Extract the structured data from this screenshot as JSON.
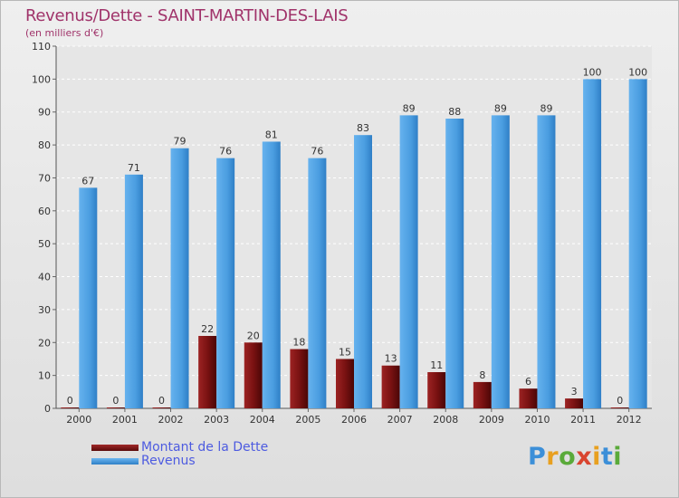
{
  "header": {
    "title": "Revenus/Dette - SAINT-MARTIN-DES-LAIS",
    "subtitle": "(en milliers d'€)"
  },
  "logo": {
    "text": "Proxiti"
  },
  "colors": {
    "dette": "#7a1212",
    "revenus": "#4c9ee0",
    "title": "#a0336a",
    "legend_text": "#4d5be0"
  },
  "chart_data": {
    "type": "bar",
    "title": "Revenus/Dette - SAINT-MARTIN-DES-LAIS",
    "subtitle": "(en milliers d'€)",
    "categories": [
      "2000",
      "2001",
      "2002",
      "2003",
      "2004",
      "2005",
      "2006",
      "2007",
      "2008",
      "2009",
      "2010",
      "2011",
      "2012"
    ],
    "series": [
      {
        "name": "Montant de la Dette",
        "color": "#7a1212",
        "values": [
          0,
          0,
          0,
          22,
          20,
          18,
          15,
          13,
          11,
          8,
          6,
          3,
          0
        ]
      },
      {
        "name": "Revenus",
        "color": "#4c9ee0",
        "values": [
          67,
          71,
          79,
          76,
          81,
          76,
          83,
          89,
          88,
          89,
          89,
          100,
          100
        ]
      }
    ],
    "ylim": [
      0,
      110
    ],
    "yticks": [
      0,
      10,
      20,
      30,
      40,
      50,
      60,
      70,
      80,
      90,
      100,
      110
    ],
    "grid": true,
    "legend_position": "bottom-left"
  }
}
